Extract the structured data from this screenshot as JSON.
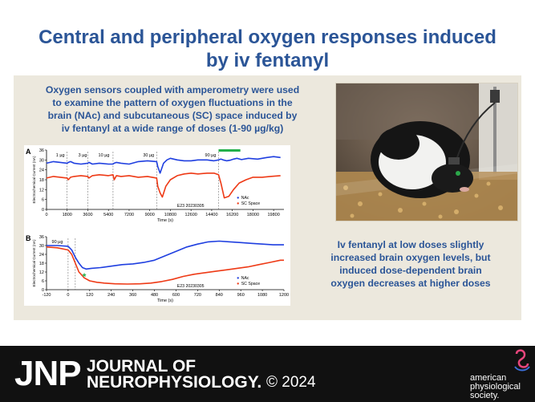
{
  "header": {
    "title_line1": "Central and peripheral oxygen responses induced",
    "title_line2": "by iv fentanyl"
  },
  "intro": {
    "line1": "Oxygen sensors coupled with amperometry were used",
    "line2": "to examine the pattern of oxygen fluctuations in the",
    "line3": "brain (NAc) and subcutaneous (SC) space induced by",
    "line4": "iv fentanyl at a wide range of doses (1-90 µg/kg)"
  },
  "summary": {
    "line1": "Iv fentanyl at low doses slightly",
    "line2": "increased brain oxygen levels, but",
    "line3": "induced dose-dependent brain",
    "line4": "oxygen decreases at higher doses"
  },
  "footer": {
    "brand": "JNP",
    "journal_line1": "JOURNAL OF",
    "journal_line2": "NEUROPHYSIOLOGY.",
    "copyright": "© 2024",
    "society_line1": "american",
    "society_line2": "physiological",
    "society_line3": "society."
  },
  "colors": {
    "title_blue": "#2b5597",
    "panel_bg": "#ece8dd",
    "nac_series": "#1f3fe0",
    "sc_series": "#ee3a16",
    "marker_green": "#23b04a",
    "footer_bg": "#111111"
  },
  "chart_data": [
    {
      "type": "line",
      "panel_label": "A",
      "ylabel": "Electrochemical Current (nA)",
      "xlabel": "Time (s)",
      "yticks": [
        "36",
        "30",
        "24",
        "18",
        "12",
        "6",
        "0"
      ],
      "xticks": [
        "0",
        "1800",
        "3600",
        "5400",
        "7200",
        "9000",
        "10800",
        "12600",
        "14400",
        "16200",
        "18000",
        "19800"
      ],
      "xlim": [
        0,
        20700
      ],
      "ylim": [
        0,
        36
      ],
      "dose_labels": [
        {
          "text": "1 µg",
          "x": 1200
        },
        {
          "text": "3 µg",
          "x": 3150
        },
        {
          "text": "10 µg",
          "x": 5000
        },
        {
          "text": "30 µg",
          "x": 8900
        },
        {
          "text": "90 µg",
          "x": 14300
        }
      ],
      "injections": [
        1800,
        3600,
        5800,
        9600,
        15000
      ],
      "highlight": {
        "from": 15000,
        "to": 16900
      },
      "annotation": "E23 20230305",
      "legend": [
        "NAc",
        "SC Space"
      ],
      "series": [
        {
          "name": "NAc",
          "x": [
            0,
            600,
            1200,
            1800,
            1900,
            2100,
            2400,
            3000,
            3600,
            3700,
            4000,
            4600,
            5400,
            5800,
            5900,
            6100,
            6500,
            7200,
            8000,
            8800,
            9600,
            9700,
            9900,
            10200,
            10500,
            10800,
            11400,
            12000,
            12600,
            13200,
            14000,
            14600,
            15000,
            15200,
            15400,
            15700,
            16000,
            16300,
            16600,
            17000,
            17600,
            18400,
            19200,
            19800,
            20400
          ],
          "y": [
            28,
            29,
            28.5,
            28,
            28.5,
            29,
            28,
            27.5,
            28,
            28.5,
            27.5,
            28,
            27.5,
            27.5,
            28,
            28.5,
            28,
            27.5,
            29,
            29.5,
            29,
            26,
            22,
            28,
            30,
            31,
            30,
            29.5,
            29.5,
            30,
            30,
            29.5,
            30,
            30.5,
            30,
            29.5,
            29.8,
            30.5,
            31,
            30.2,
            31,
            30.5,
            31.5,
            32,
            31.5
          ]
        },
        {
          "name": "SC Space",
          "x": [
            0,
            600,
            1200,
            1800,
            1900,
            2100,
            2400,
            3000,
            3600,
            3700,
            4000,
            4600,
            5400,
            5800,
            5900,
            6100,
            6500,
            7200,
            8000,
            8800,
            9600,
            9700,
            9900,
            10100,
            10400,
            10800,
            11400,
            12000,
            12600,
            13200,
            14000,
            14600,
            15000,
            15200,
            15500,
            15900,
            16300,
            16800,
            17400,
            18000,
            18800,
            19500,
            20400
          ],
          "y": [
            19,
            20,
            19.5,
            19,
            18,
            19.5,
            20,
            20.5,
            20,
            19,
            20.5,
            21,
            20.5,
            21,
            18,
            20.5,
            20,
            20.5,
            19.5,
            20,
            19,
            14,
            10,
            7.5,
            14,
            18,
            20.5,
            21.5,
            22,
            21.5,
            22,
            22,
            21,
            16,
            7,
            8,
            12,
            16,
            18,
            19.5,
            19.5,
            20,
            20.5
          ]
        }
      ]
    },
    {
      "type": "line",
      "panel_label": "B",
      "ylabel": "Electrochemical Current (nA)",
      "xlabel": "Time (s)",
      "yticks": [
        "36",
        "30",
        "24",
        "18",
        "12",
        "6",
        "0"
      ],
      "xticks": [
        "-120",
        "0",
        "120",
        "240",
        "360",
        "480",
        "600",
        "720",
        "840",
        "960",
        "1080",
        "1200"
      ],
      "xlim": [
        -120,
        1200
      ],
      "ylim": [
        0,
        36
      ],
      "dose_labels": [
        {
          "text": "90 µg",
          "x": -60
        }
      ],
      "injections": [
        0,
        40
      ],
      "peak_marker": {
        "x": 90,
        "y": 11.5
      },
      "annotation": "E23 20230305",
      "legend": [
        "NAc",
        "SC Space"
      ],
      "series": [
        {
          "name": "NAc",
          "x": [
            -120,
            -60,
            0,
            20,
            40,
            60,
            80,
            100,
            130,
            180,
            240,
            300,
            360,
            420,
            480,
            540,
            600,
            660,
            720,
            780,
            840,
            900,
            960,
            1020,
            1080,
            1140,
            1200
          ],
          "y": [
            30,
            30,
            29.5,
            27,
            22,
            18,
            15,
            14,
            14.5,
            15,
            16,
            17,
            17.5,
            18.5,
            20,
            23,
            26,
            29,
            31,
            32.5,
            33,
            32.5,
            32,
            31.5,
            31,
            30.5,
            30.5
          ]
        },
        {
          "name": "SC Space",
          "x": [
            -120,
            -60,
            0,
            20,
            40,
            60,
            90,
            120,
            160,
            200,
            260,
            330,
            400,
            460,
            520,
            580,
            640,
            700,
            760,
            820,
            880,
            940,
            1000,
            1060,
            1120,
            1180,
            1200
          ],
          "y": [
            29,
            28.5,
            27,
            24,
            18,
            12,
            8,
            6,
            5,
            4.5,
            4,
            3.8,
            4,
            4.5,
            5.5,
            7,
            9,
            10.5,
            11.5,
            12.5,
            13.5,
            14.5,
            15.5,
            17,
            18.5,
            20,
            20
          ]
        }
      ]
    }
  ]
}
